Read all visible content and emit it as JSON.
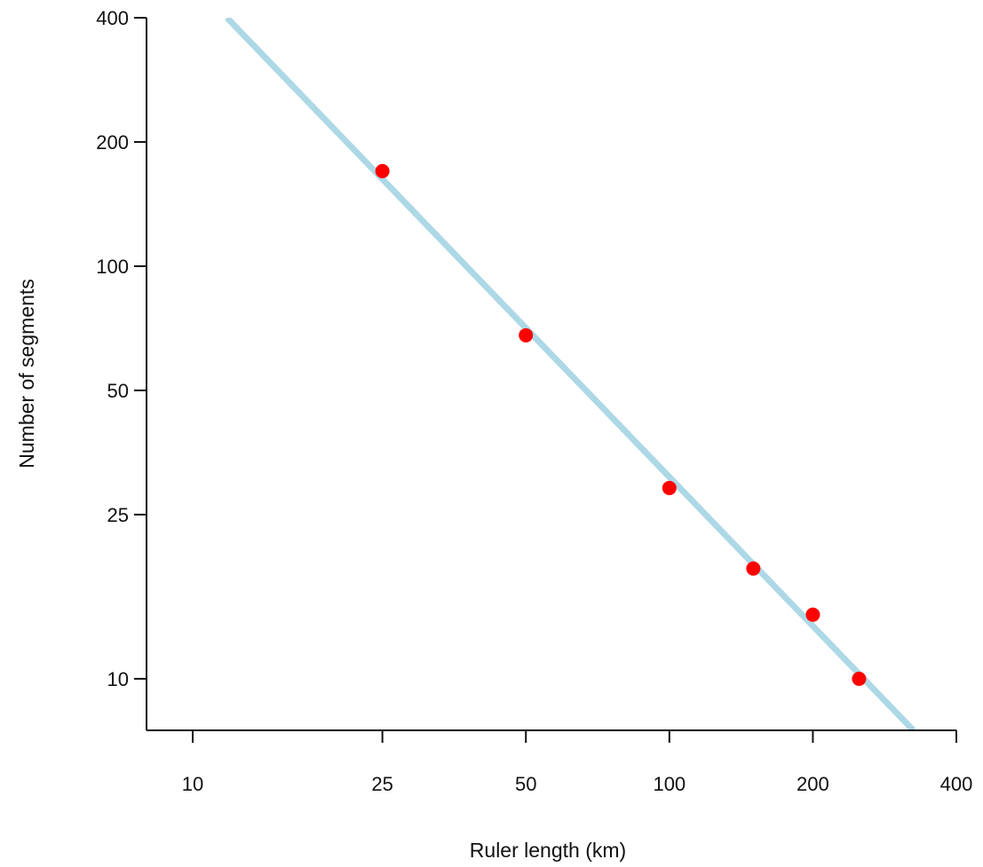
{
  "chart_data": {
    "type": "scatter",
    "title": "",
    "xlabel": "Ruler length (km)",
    "ylabel": "Number of segments",
    "x_scale": "log",
    "y_scale": "log",
    "xlim": [
      8,
      400
    ],
    "ylim": [
      7.5,
      400
    ],
    "x_ticks": [
      10,
      25,
      50,
      100,
      200,
      400
    ],
    "x_tick_labels": [
      "10",
      "25",
      "50",
      "100",
      "200",
      "400"
    ],
    "y_ticks": [
      10,
      25,
      50,
      100,
      200,
      400
    ],
    "y_tick_labels": [
      "10",
      "25",
      "50",
      "100",
      "200",
      "400"
    ],
    "grid": false,
    "legend": "none",
    "series": [
      {
        "kind": "points",
        "color": "#ff0000",
        "x": [
          25,
          50,
          100,
          150,
          200,
          250
        ],
        "y": [
          170,
          68,
          29,
          18.5,
          14.3,
          10
        ]
      },
      {
        "kind": "fit-line",
        "color": "#add8e6",
        "x": [
          11.8,
          325
        ],
        "y": [
          400,
          7.5
        ]
      }
    ]
  }
}
